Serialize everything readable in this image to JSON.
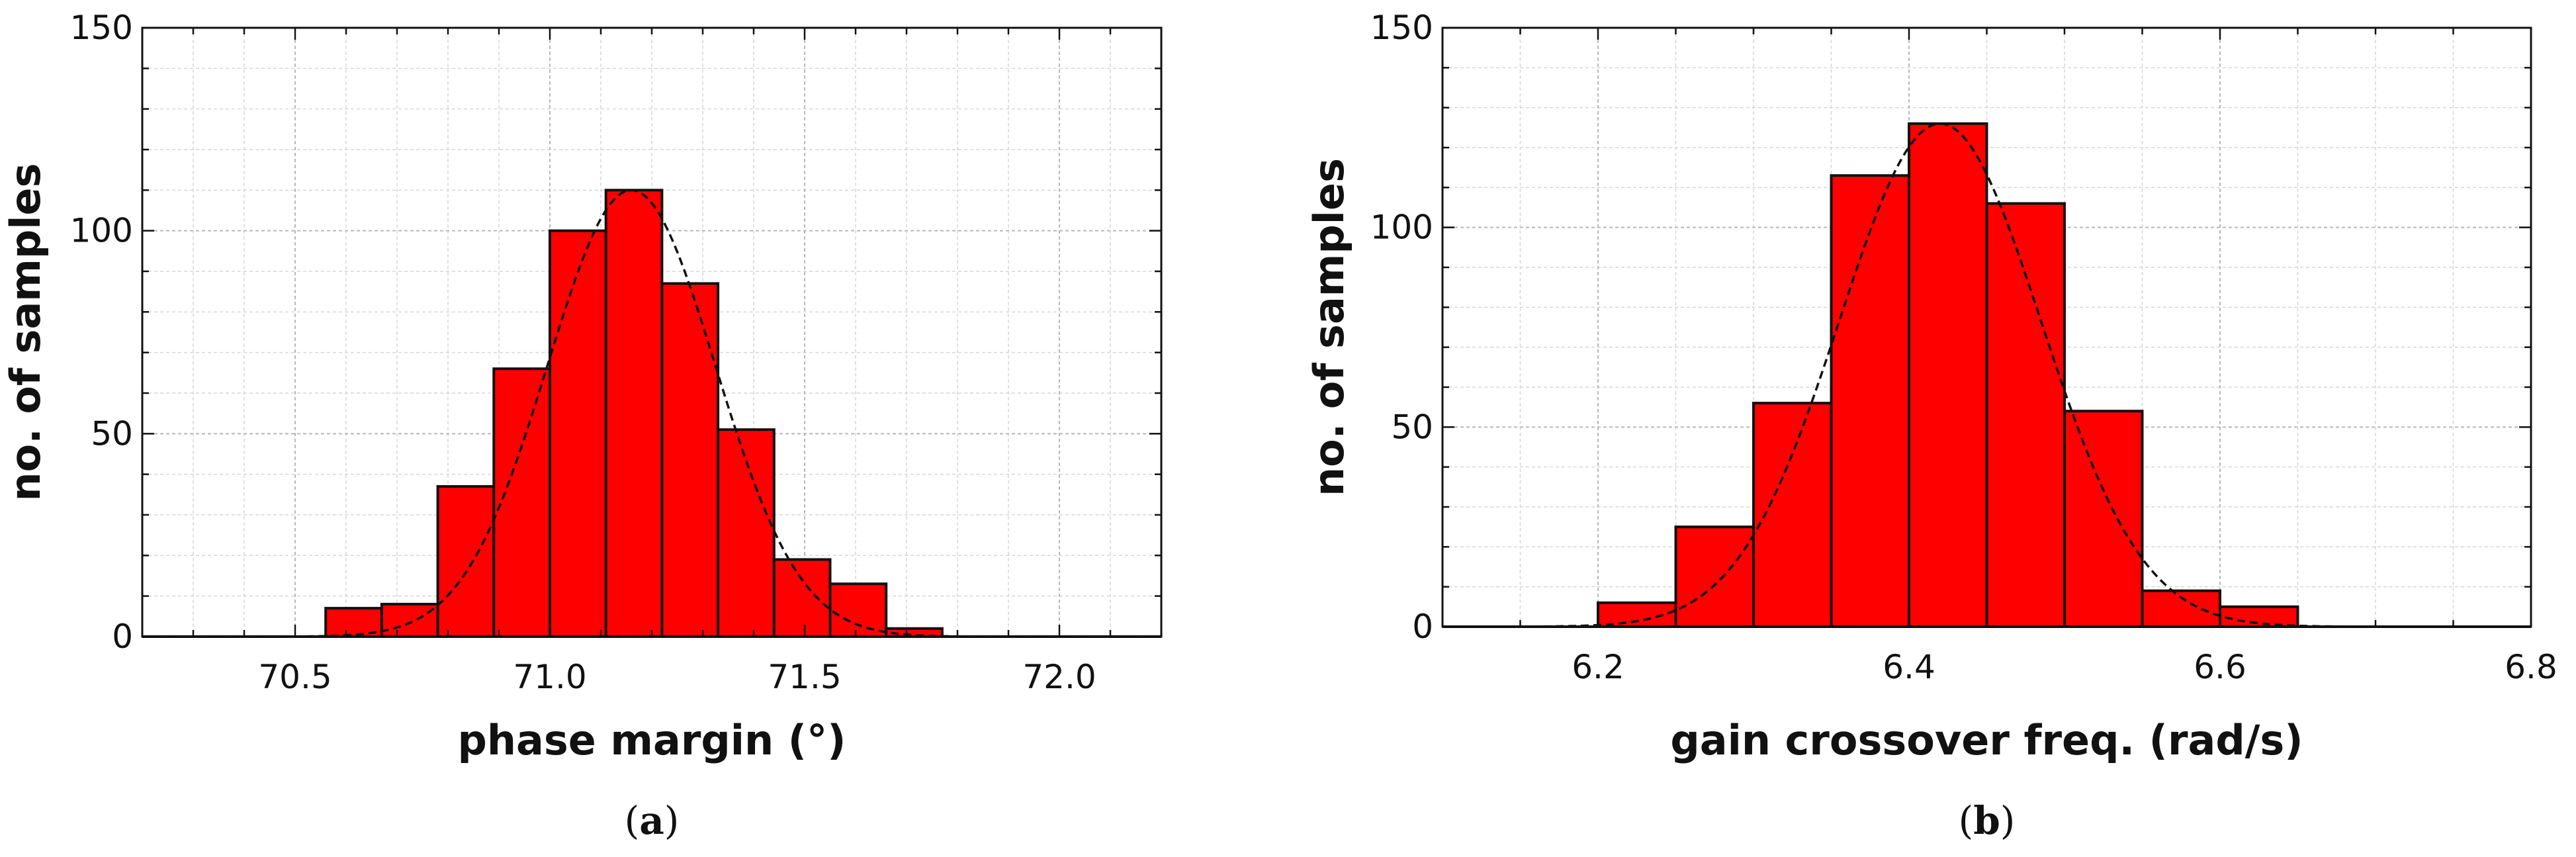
{
  "chart_data": [
    {
      "type": "bar",
      "panel_label": "a",
      "xlabel": "phase margin (°)",
      "ylabel": "no. of samples",
      "xlim": [
        70.2,
        72.2
      ],
      "ylim": [
        0,
        150
      ],
      "xticks": [
        70.5,
        71.0,
        71.5,
        72.0
      ],
      "xtick_labels": [
        "70.5",
        "71.0",
        "71.5",
        "72.0"
      ],
      "yticks": [
        0,
        50,
        100,
        150
      ],
      "grid": true,
      "bar_color": "#ff0000",
      "bins": [
        {
          "x0": 70.56,
          "x1": 70.67,
          "value": 7
        },
        {
          "x0": 70.67,
          "x1": 70.78,
          "value": 8
        },
        {
          "x0": 70.78,
          "x1": 70.89,
          "value": 37
        },
        {
          "x0": 70.89,
          "x1": 71.0,
          "value": 66
        },
        {
          "x0": 71.0,
          "x1": 71.11,
          "value": 100
        },
        {
          "x0": 71.11,
          "x1": 71.22,
          "value": 110
        },
        {
          "x0": 71.22,
          "x1": 71.33,
          "value": 87
        },
        {
          "x0": 71.33,
          "x1": 71.44,
          "value": 51
        },
        {
          "x0": 71.44,
          "x1": 71.55,
          "value": 19
        },
        {
          "x0": 71.55,
          "x1": 71.66,
          "value": 13
        },
        {
          "x0": 71.66,
          "x1": 71.77,
          "value": 2
        }
      ],
      "fit_curve": {
        "style": "dashed",
        "mean": 71.16,
        "sigma": 0.165,
        "peak": 110
      }
    },
    {
      "type": "bar",
      "panel_label": "b",
      "xlabel": "gain crossover freq. (rad/s)",
      "ylabel": "no. of samples",
      "xlim": [
        6.1,
        6.8
      ],
      "ylim": [
        0,
        150
      ],
      "xticks": [
        6.2,
        6.4,
        6.6,
        6.8
      ],
      "xtick_labels": [
        "6.2",
        "6.4",
        "6.6",
        "6.8"
      ],
      "yticks": [
        0,
        50,
        100,
        150
      ],
      "grid": true,
      "bar_color": "#ff0000",
      "bins": [
        {
          "x0": 6.2,
          "x1": 6.25,
          "value": 6
        },
        {
          "x0": 6.25,
          "x1": 6.3,
          "value": 25
        },
        {
          "x0": 6.3,
          "x1": 6.35,
          "value": 56
        },
        {
          "x0": 6.35,
          "x1": 6.4,
          "value": 113
        },
        {
          "x0": 6.4,
          "x1": 6.45,
          "value": 126
        },
        {
          "x0": 6.45,
          "x1": 6.5,
          "value": 106
        },
        {
          "x0": 6.5,
          "x1": 6.55,
          "value": 54
        },
        {
          "x0": 6.55,
          "x1": 6.6,
          "value": 9
        },
        {
          "x0": 6.6,
          "x1": 6.65,
          "value": 5
        }
      ],
      "fit_curve": {
        "style": "dashed",
        "mean": 6.42,
        "sigma": 0.065,
        "peak": 126
      }
    }
  ]
}
